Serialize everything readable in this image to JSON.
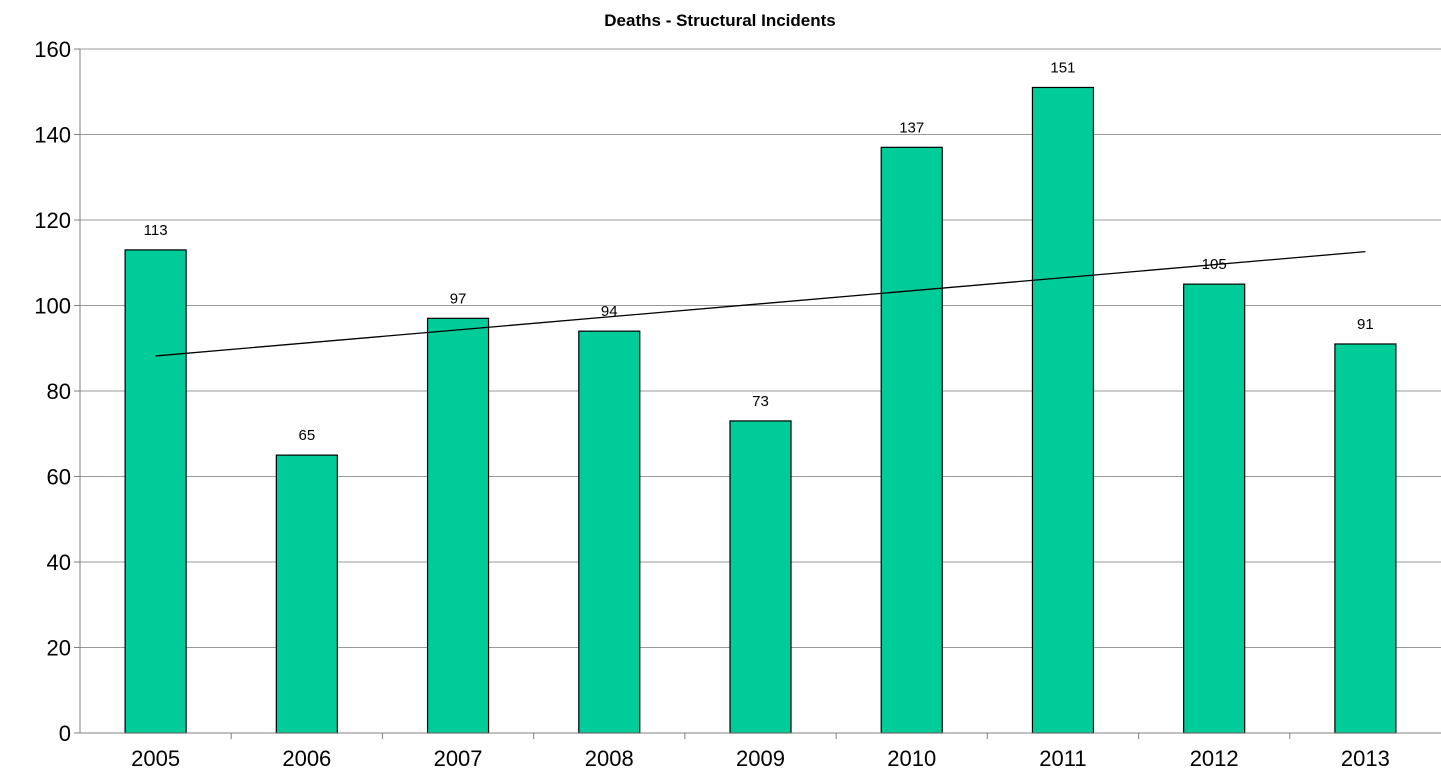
{
  "chart_data": {
    "type": "bar",
    "title": "Deaths - Structural Incidents",
    "xlabel": "",
    "ylabel": "",
    "categories": [
      "2005",
      "2006",
      "2007",
      "2008",
      "2009",
      "2010",
      "2011",
      "2012",
      "2013"
    ],
    "values": [
      113,
      65,
      97,
      94,
      73,
      137,
      151,
      105,
      91
    ],
    "data_labels": [
      "113",
      "65",
      "97",
      "94",
      "73",
      "137",
      "151",
      "105",
      "91"
    ],
    "ylim": [
      0,
      160
    ],
    "yticks": [
      0,
      20,
      40,
      60,
      80,
      100,
      120,
      140,
      160
    ],
    "ytick_labels": [
      "0",
      "20",
      "40",
      "60",
      "80",
      "100",
      "120",
      "140",
      "160"
    ],
    "grid": true,
    "legend": "none",
    "trendline": {
      "type": "linear",
      "start": 88.2,
      "end": 112.6
    },
    "colors": {
      "bar_fill": "#00CC99",
      "bar_stroke": "#000000",
      "gridline": "#999999",
      "axis": "#808080",
      "trendline": "#000000"
    }
  }
}
